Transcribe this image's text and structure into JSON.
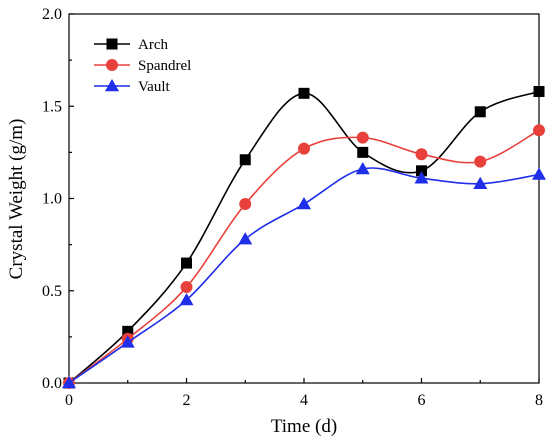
{
  "chart_data": {
    "type": "line",
    "title": "",
    "xlabel": "Time (d)",
    "ylabel": "Crystal Weight (g/m)",
    "xlim": [
      0,
      8
    ],
    "ylim": [
      0.0,
      2.0
    ],
    "xticks": [
      "0",
      "2",
      "4",
      "6",
      "8"
    ],
    "yticks": [
      "0.0",
      "0.5",
      "1.0",
      "1.5",
      "2.0"
    ],
    "grid": false,
    "legend_position": "top-left",
    "x": [
      0,
      1,
      2,
      3,
      4,
      5,
      6,
      7,
      8
    ],
    "series": [
      {
        "name": "Arch",
        "color": "#000000",
        "marker": "square",
        "values": [
          0.0,
          0.28,
          0.65,
          1.21,
          1.57,
          1.25,
          1.15,
          1.47,
          1.58
        ]
      },
      {
        "name": "Spandrel",
        "color": "#e8413c",
        "marker": "circle",
        "values": [
          0.0,
          0.24,
          0.52,
          0.97,
          1.27,
          1.33,
          1.24,
          1.2,
          1.37
        ]
      },
      {
        "name": "Vault",
        "color": "#1f2ee8",
        "marker": "triangle",
        "values": [
          0.0,
          0.22,
          0.45,
          0.78,
          0.97,
          1.16,
          1.11,
          1.08,
          1.13
        ]
      }
    ]
  }
}
